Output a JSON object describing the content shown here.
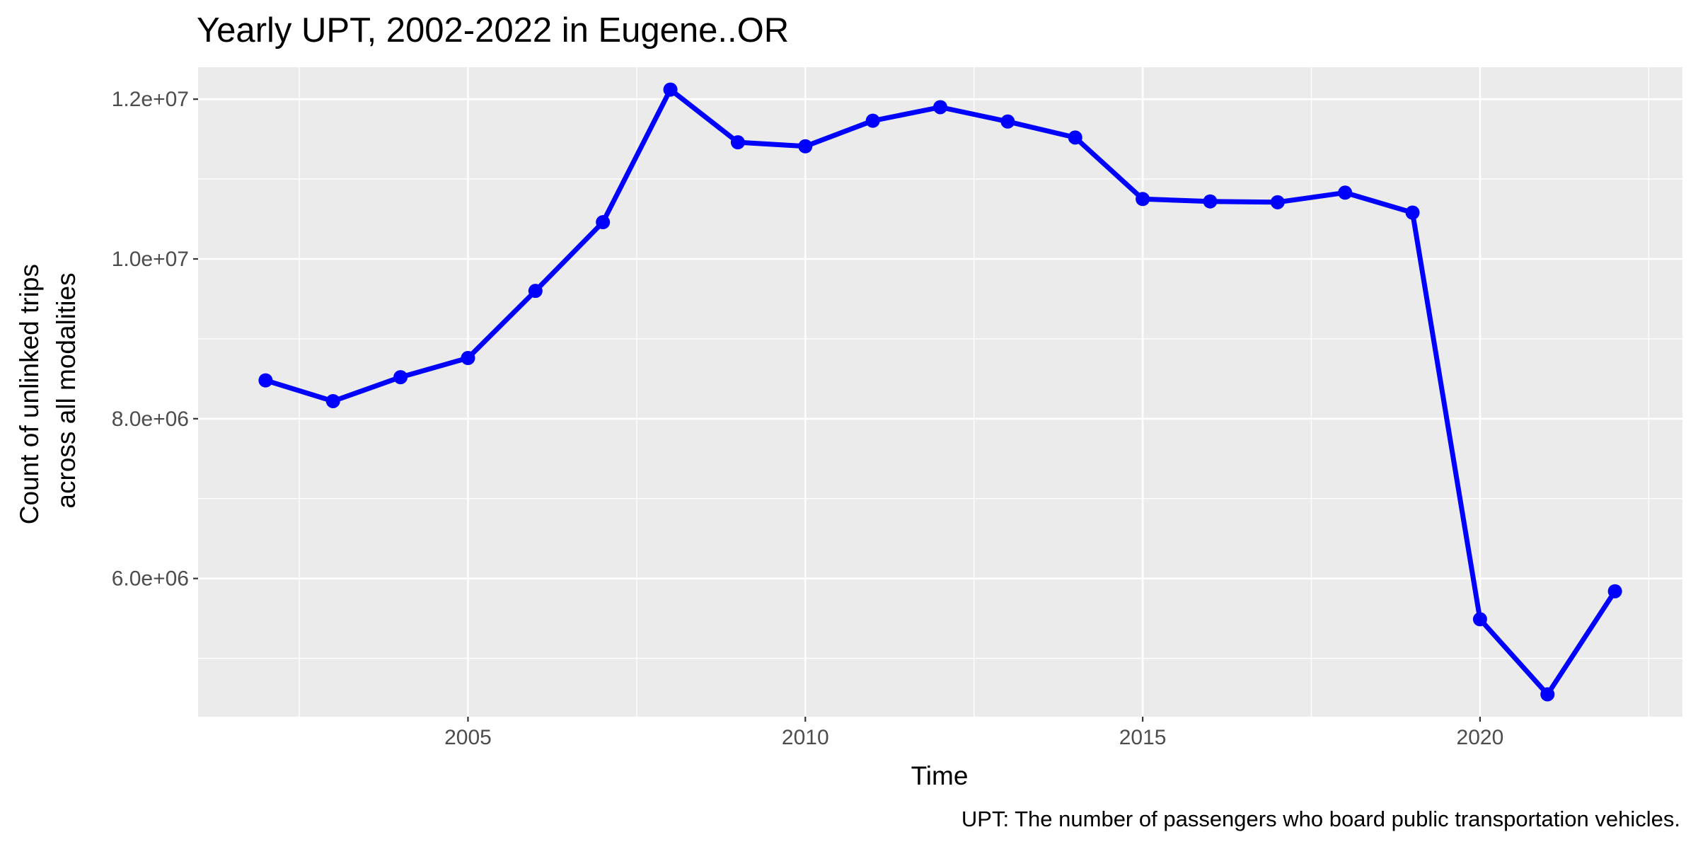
{
  "chart_data": {
    "type": "line",
    "title": "Yearly UPT, 2002-2022 in Eugene..OR",
    "xlabel": "Time",
    "ylabel_lines": [
      "Count of unlinked trips",
      "across all modalities"
    ],
    "caption": "UPT: The number of passengers who board public transportation vehicles.",
    "x": [
      2002,
      2003,
      2004,
      2005,
      2006,
      2007,
      2008,
      2009,
      2010,
      2011,
      2012,
      2013,
      2014,
      2015,
      2016,
      2017,
      2018,
      2019,
      2020,
      2021,
      2022
    ],
    "series": [
      {
        "values": [
          8480000,
          8220000,
          8520000,
          8760000,
          9600000,
          10460000,
          12120000,
          11460000,
          11410000,
          11730000,
          11900000,
          11720000,
          11520000,
          10750000,
          10720000,
          10710000,
          10830000,
          10580000,
          5490000,
          4550000,
          5840000
        ]
      }
    ],
    "x_ticks": [
      2005,
      2010,
      2015,
      2020
    ],
    "x_tick_labels": [
      "2005",
      "2010",
      "2015",
      "2020"
    ],
    "x_minor_ticks": [
      2002.5,
      2007.5,
      2012.5,
      2017.5,
      2022.5
    ],
    "y_ticks": [
      6000000,
      8000000,
      10000000,
      12000000
    ],
    "y_tick_labels": [
      "6.0e+06",
      "8.0e+06",
      "1.0e+07",
      "1.2e+07"
    ],
    "y_minor_ticks": [
      5000000,
      7000000,
      9000000,
      11000000
    ],
    "xlim": [
      2001,
      2023
    ],
    "ylim": [
      4270000,
      12400000
    ],
    "grid": true,
    "legend": "none",
    "colors": {
      "line": "#0000FF",
      "panel": "#EBEBEB",
      "grid": "#FFFFFF"
    }
  }
}
